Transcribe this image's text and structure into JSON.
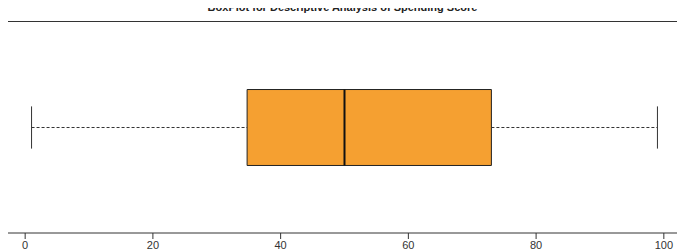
{
  "chart_data": {
    "type": "boxplot",
    "title": "BoxPlot for Descriptive Analysis of Spending Score",
    "orientation": "horizontal",
    "color": "#f5a031",
    "xlim": [
      -3,
      103
    ],
    "xticks": [
      0,
      20,
      40,
      60,
      80,
      100
    ],
    "min": 1,
    "q1": 34.75,
    "median": 50,
    "q3": 73,
    "max": 99
  }
}
